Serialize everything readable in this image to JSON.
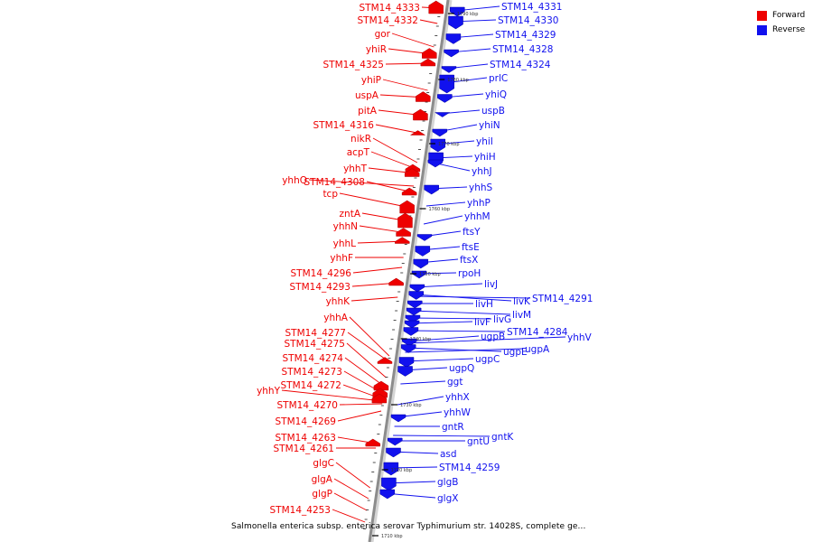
{
  "caption": "Salmonella enterica subsp. enterica serovar Typhimurium str. 14028S, complete ge...",
  "colors": {
    "forward": "#ee0000",
    "reverse": "#1111ee",
    "axis": "#8c8c8c"
  },
  "legend": [
    {
      "label": "Forward",
      "color": "#ee0000"
    },
    {
      "label": "Reverse",
      "color": "#1111ee"
    }
  ],
  "ticks": [
    "1790 kbp",
    "1780 kbp",
    "1770 kbp",
    "1760 kbp",
    "1750 kbp",
    "1740 kbp",
    "1730 kbp",
    "1720 kbp",
    "1710 kbp"
  ],
  "forward_genes": [
    "STM14_4333",
    "STM14_4332",
    "gor",
    "yhiR",
    "STM14_4325",
    "yhiP",
    "uspA",
    "pitA",
    "STM14_4316",
    "nikR",
    "acpT",
    "yhhT",
    "yhhQ",
    "STM14_4308",
    "tcp",
    "zntA",
    "yhhN",
    "yhhL",
    "yhhF",
    "STM14_4296",
    "STM14_4293",
    "yhhK",
    "yhhA",
    "STM14_4277",
    "STM14_4275",
    "STM14_4274",
    "STM14_4273",
    "STM14_4272",
    "yhhY",
    "STM14_4270",
    "STM14_4269",
    "STM14_4263",
    "STM14_4261",
    "glgC",
    "glgA",
    "glgP",
    "STM14_4253"
  ],
  "reverse_genes": [
    "STM14_4331",
    "STM14_4330",
    "STM14_4329",
    "STM14_4328",
    "STM14_4324",
    "prlC",
    "yhiQ",
    "uspB",
    "yhiN",
    "yhiI",
    "yhiH",
    "yhhJ",
    "yhhS",
    "yhhP",
    "yhhM",
    "ftsY",
    "ftsE",
    "ftsX",
    "rpoH",
    "livJ",
    "livK",
    "STM14_4291",
    "livH",
    "livM",
    "livG",
    "livF",
    "STM14_4284",
    "ugpB",
    "yhhV",
    "ugpE",
    "ugpA",
    "ugpC",
    "ugpQ",
    "ggt",
    "yhhX",
    "yhhW",
    "gntR",
    "gntK",
    "gntU",
    "asd",
    "STM14_4259",
    "glgB",
    "glgX"
  ]
}
